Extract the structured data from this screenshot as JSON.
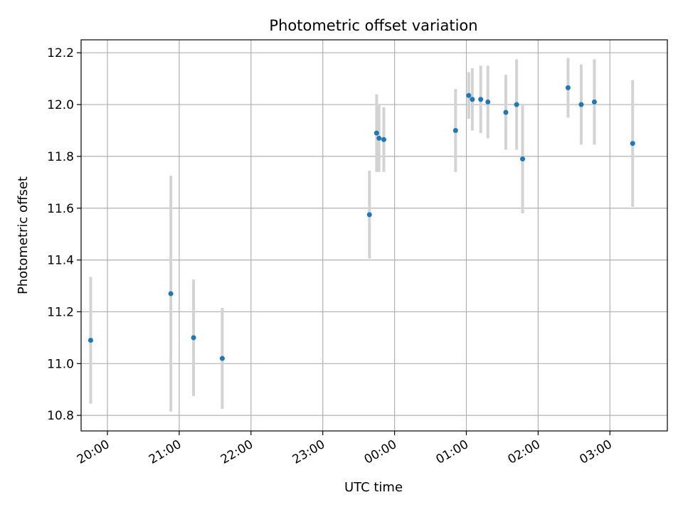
{
  "chart_data": {
    "type": "scatter",
    "title": "Photometric offset variation",
    "xlabel": "UTC time",
    "ylabel": "Photometric offset",
    "x_unit": "UTC time (hh:mm), starting evening of night",
    "xlim": [
      "19:38",
      "03:48"
    ],
    "ylim": [
      10.74,
      12.25
    ],
    "xticks": [
      "20:00",
      "21:00",
      "22:00",
      "23:00",
      "00:00",
      "01:00",
      "02:00",
      "03:00"
    ],
    "yticks": [
      "10.8",
      "11.0",
      "11.2",
      "11.4",
      "11.6",
      "11.8",
      "12.0",
      "12.2"
    ],
    "grid": true,
    "colors": {
      "point": "#1f77b4",
      "errorbar": "#d3d3d3",
      "grid": "#b0b0b0"
    },
    "series": [
      {
        "points": [
          {
            "x": "19:46",
            "y": 11.09,
            "err": 0.245
          },
          {
            "x": "20:53",
            "y": 11.27,
            "err": 0.455
          },
          {
            "x": "21:12",
            "y": 11.1,
            "err": 0.225
          },
          {
            "x": "21:36",
            "y": 11.02,
            "err": 0.195
          },
          {
            "x": "23:39",
            "y": 11.575,
            "err": 0.17
          },
          {
            "x": "23:45",
            "y": 11.89,
            "err": 0.15
          },
          {
            "x": "23:47",
            "y": 11.87,
            "err": 0.13
          },
          {
            "x": "23:51",
            "y": 11.865,
            "err": 0.125
          },
          {
            "x": "00:51",
            "y": 11.9,
            "err": 0.16
          },
          {
            "x": "01:02",
            "y": 12.035,
            "err": 0.09
          },
          {
            "x": "01:05",
            "y": 12.02,
            "err": 0.12
          },
          {
            "x": "01:12",
            "y": 12.02,
            "err": 0.13
          },
          {
            "x": "01:18",
            "y": 12.01,
            "err": 0.14
          },
          {
            "x": "01:33",
            "y": 11.97,
            "err": 0.145
          },
          {
            "x": "01:42",
            "y": 12.0,
            "err": 0.175
          },
          {
            "x": "01:47",
            "y": 11.79,
            "err": 0.21
          },
          {
            "x": "02:25",
            "y": 12.065,
            "err": 0.115
          },
          {
            "x": "02:36",
            "y": 12.0,
            "err": 0.155
          },
          {
            "x": "02:47",
            "y": 12.01,
            "err": 0.165
          },
          {
            "x": "03:19",
            "y": 11.85,
            "err": 0.245
          }
        ]
      }
    ]
  }
}
